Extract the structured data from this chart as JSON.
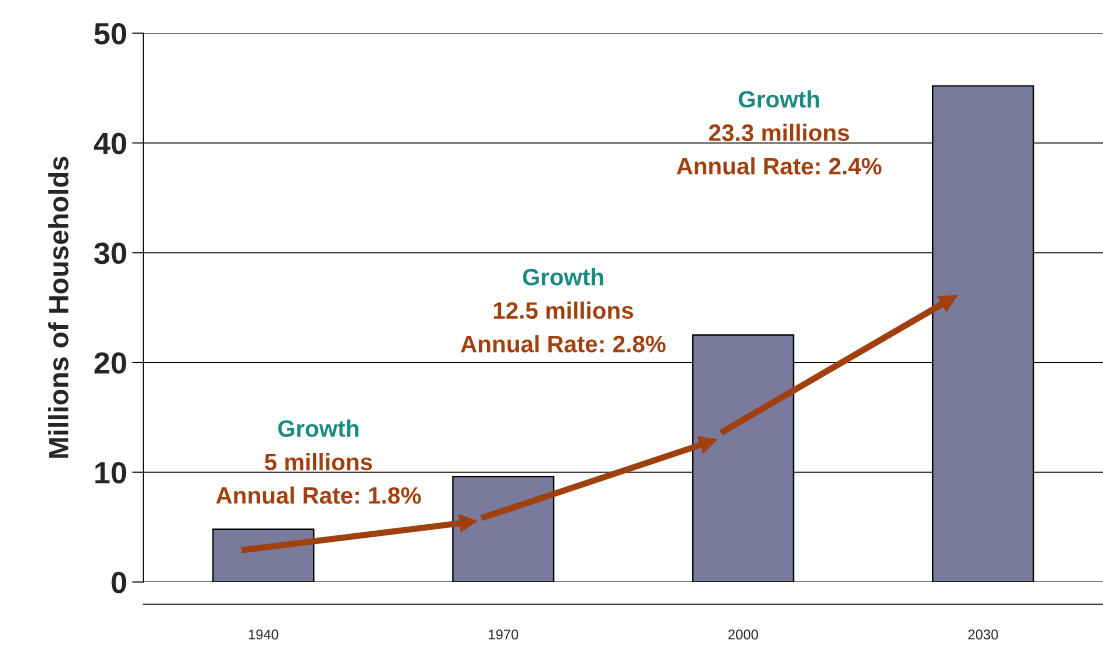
{
  "chart_data": {
    "type": "bar",
    "ylabel": "Millions of Households",
    "categories": [
      "1940",
      "1970",
      "2000",
      "2030"
    ],
    "values": [
      4.8,
      9.6,
      22.5,
      45.2
    ],
    "color": "#7a7a9c",
    "ylim": [
      0,
      50
    ],
    "yticks": [
      0,
      10,
      20,
      30,
      40,
      50
    ],
    "grid": "y",
    "annotations": [
      "Growth\n5 millions\nAnnual Rate: 1.8%",
      "Growth\n12.5 millions\nAnnual Rate: 2.8%",
      "Growth\n23.3 millions\nAnnual Rate: 2.4%"
    ]
  }
}
